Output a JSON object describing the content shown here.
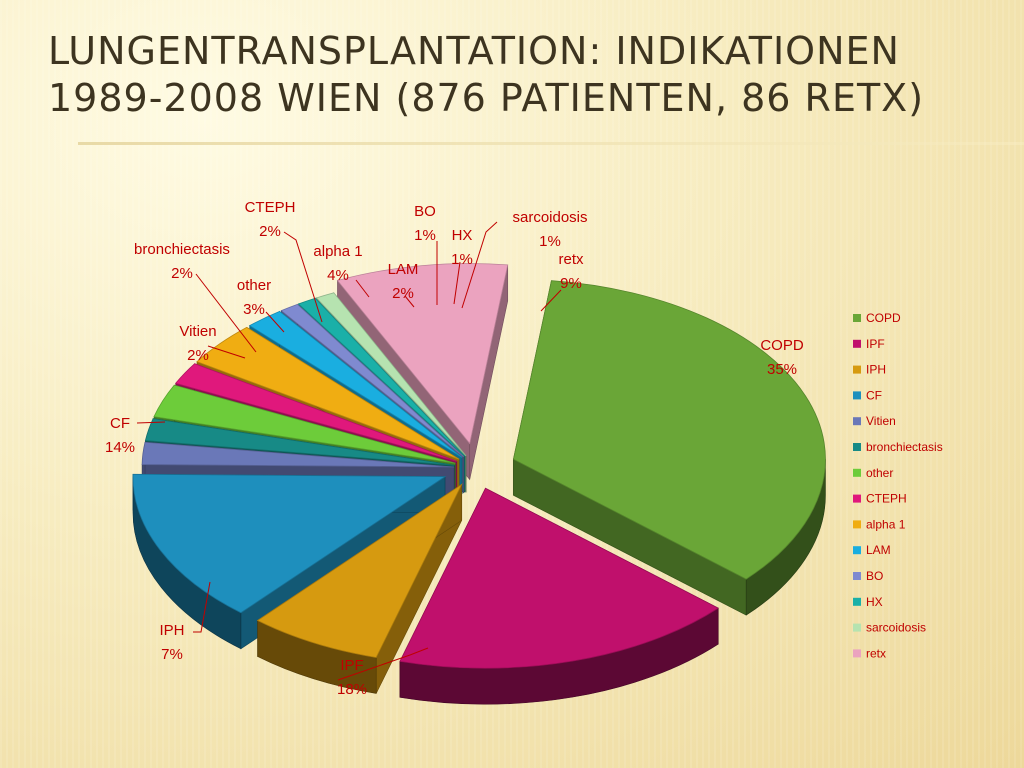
{
  "slide": {
    "title_line1": "Lungentransplantation: Indikationen",
    "title_line2": "1989-2008 Wien (876 Patienten, 86 reTx)"
  },
  "chart_data": {
    "type": "pie",
    "style": "3d-exploded",
    "legend_position": "right",
    "label_color": "#c00000",
    "slices": [
      {
        "name": "COPD",
        "percent": 35,
        "label": "35%",
        "color": "#6aa637"
      },
      {
        "name": "IPF",
        "percent": 18,
        "label": "18%",
        "color": "#c0106c"
      },
      {
        "name": "IPH",
        "percent": 7,
        "label": "7%",
        "color": "#d69a10"
      },
      {
        "name": "CF",
        "percent": 14,
        "label": "14%",
        "color": "#1e8fbd"
      },
      {
        "name": "Vitien",
        "percent": 2,
        "label": "2%",
        "color": "#6a78b8"
      },
      {
        "name": "bronchiectasis",
        "percent": 2,
        "label": "2%",
        "color": "#178a86"
      },
      {
        "name": "other",
        "percent": 3,
        "label": "3%",
        "color": "#6dcc3a"
      },
      {
        "name": "CTEPH",
        "percent": 2,
        "label": "2%",
        "color": "#e0187c"
      },
      {
        "name": "alpha 1",
        "percent": 4,
        "label": "4%",
        "color": "#f0ad12"
      },
      {
        "name": "LAM",
        "percent": 2,
        "label": "2%",
        "color": "#1aaee0"
      },
      {
        "name": "BO",
        "percent": 1,
        "label": "1%",
        "color": "#7f8ad0"
      },
      {
        "name": "HX",
        "percent": 1,
        "label": "1%",
        "color": "#1ab0a8"
      },
      {
        "name": "sarcoidosis",
        "percent": 1,
        "label": "1%",
        "color": "#b6e3b0"
      },
      {
        "name": "retx",
        "percent": 9,
        "label": "9%",
        "color": "#eba3bf"
      }
    ]
  }
}
